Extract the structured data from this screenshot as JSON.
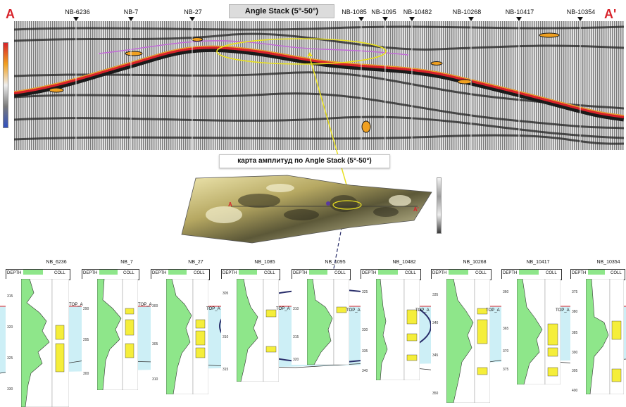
{
  "section": {
    "title": "Angle Stack (5°-50°)",
    "end_left": "A",
    "end_right": "A'",
    "wells": [
      "NB-6236",
      "NB-7",
      "NB-27",
      "NB-1085",
      "NB-1095",
      "NB-10482",
      "NB-10268",
      "NB-10417",
      "NB-10354"
    ]
  },
  "map": {
    "title": "карта амплитуд по Angle Stack (5°-50°)",
    "label_a": "A",
    "label_a_prime": "A'"
  },
  "logs": {
    "top_marker": "TOP_A",
    "depth_header": "DEPTH",
    "coll_header": "COLL",
    "wells": [
      {
        "name": "NB_6236",
        "depths": [
          "315",
          "320",
          "325",
          "330"
        ]
      },
      {
        "name": "NB_7",
        "depths": [
          "290",
          "295",
          "300"
        ]
      },
      {
        "name": "NB_27",
        "depths": [
          "300",
          "305",
          "310"
        ]
      },
      {
        "name": "NB_1085",
        "depths": [
          "305",
          "310",
          "315"
        ]
      },
      {
        "name": "NB_1095",
        "depths": [
          "310",
          "315",
          "320"
        ]
      },
      {
        "name": "NB_10482",
        "depths": [
          "325",
          "330",
          "335",
          "340"
        ]
      },
      {
        "name": "NB_10268",
        "depths": [
          "335",
          "340",
          "345",
          "350"
        ]
      },
      {
        "name": "NB_10417",
        "depths": [
          "360",
          "365",
          "370",
          "375"
        ]
      },
      {
        "name": "NB_10354",
        "depths": [
          "375",
          "380",
          "385",
          "390",
          "395",
          "400"
        ]
      }
    ]
  },
  "colors": {
    "accent_red": "#d8222a",
    "highlight_yellow": "#e8e020",
    "zone_blue": "#cdeff6",
    "log_green": "#8ee68a",
    "coll_yellow": "#f5ee3a",
    "ellipse_navy": "#2a2f6b"
  }
}
